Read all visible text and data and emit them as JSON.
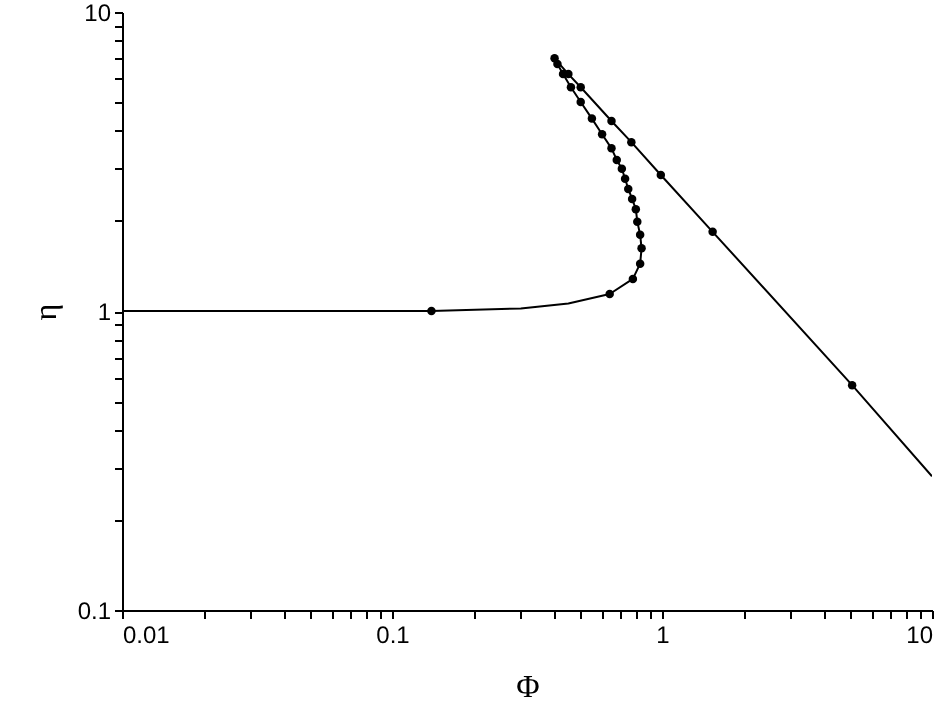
{
  "chart_data": {
    "type": "line",
    "xlabel": "Φ",
    "ylabel": "η",
    "log": "xy",
    "grid": false,
    "xlim": [
      0.01,
      10
    ],
    "ylim": [
      0.1,
      10
    ],
    "xticks": [
      0.01,
      {
        "value": 0.02,
        "label": null
      },
      {
        "value": 0.03,
        "label": null
      },
      {
        "value": 0.04,
        "label": null
      },
      {
        "value": 0.05,
        "label": null
      },
      {
        "value": 0.06,
        "label": null
      },
      {
        "value": 0.07,
        "label": null
      },
      {
        "value": 0.08,
        "label": null
      },
      {
        "value": 0.09,
        "label": null
      },
      0.1,
      {
        "value": 0.2,
        "label": null
      },
      {
        "value": 0.3,
        "label": null
      },
      {
        "value": 0.4,
        "label": null
      },
      {
        "value": 0.5,
        "label": null
      },
      {
        "value": 0.6,
        "label": null
      },
      {
        "value": 0.7,
        "label": null
      },
      {
        "value": 0.8,
        "label": null
      },
      {
        "value": 0.9,
        "label": null
      },
      1,
      {
        "value": 2,
        "label": null
      },
      {
        "value": 3,
        "label": null
      },
      {
        "value": 4,
        "label": null
      },
      {
        "value": 5,
        "label": null
      },
      {
        "value": 6,
        "label": null
      },
      {
        "value": 7,
        "label": null
      },
      {
        "value": 8,
        "label": null
      },
      {
        "value": 9,
        "label": null
      },
      10
    ],
    "yticks": [
      0.1,
      {
        "value": 0.2,
        "label": null
      },
      {
        "value": 0.3,
        "label": null
      },
      {
        "value": 0.4,
        "label": null
      },
      {
        "value": 0.5,
        "label": null
      },
      {
        "value": 0.6,
        "label": null
      },
      {
        "value": 0.7,
        "label": null
      },
      {
        "value": 0.8,
        "label": null
      },
      {
        "value": 0.9,
        "label": null
      },
      1,
      {
        "value": 2,
        "label": null
      },
      {
        "value": 3,
        "label": null
      },
      {
        "value": 4,
        "label": null
      },
      {
        "value": 5,
        "label": null
      },
      {
        "value": 6,
        "label": null
      },
      {
        "value": 7,
        "label": null
      },
      {
        "value": 8,
        "label": null
      },
      {
        "value": 9,
        "label": null
      },
      10
    ],
    "series": [
      {
        "marker": "none",
        "line_style": "solid",
        "color": "#000000",
        "x": [
          0.01,
          0.03,
          0.14,
          0.3,
          0.45,
          0.64,
          0.78,
          0.83,
          0.84,
          0.83,
          0.81,
          0.8,
          0.775,
          0.75,
          0.73,
          0.71,
          0.68,
          0.65,
          0.6,
          0.55,
          0.5,
          0.46,
          0.43,
          0.41,
          0.4,
          0.45,
          0.5,
          0.65,
          0.77,
          0.99,
          1.54,
          5.06,
          10
        ],
        "values": [
          1.0,
          1.0,
          1.0,
          1.02,
          1.06,
          1.14,
          1.28,
          1.44,
          1.62,
          1.8,
          1.99,
          2.19,
          2.37,
          2.56,
          2.77,
          2.99,
          3.2,
          3.5,
          3.9,
          4.4,
          5.0,
          5.6,
          6.2,
          6.7,
          7.0,
          6.2,
          5.6,
          4.32,
          3.67,
          2.85,
          1.84,
          0.565,
          0.28
        ]
      },
      {
        "type": "scatter",
        "marker": "circle",
        "color": "#000000",
        "x": [
          0.14,
          0.64,
          0.78,
          0.83,
          0.84,
          0.83,
          0.81,
          0.8,
          0.775,
          0.75,
          0.73,
          0.71,
          0.68,
          0.65,
          0.6,
          0.55,
          0.5,
          0.46,
          0.43,
          0.41,
          0.4,
          0.45,
          0.5,
          0.65,
          0.77,
          0.99,
          1.54,
          5.06
        ],
        "values": [
          1.0,
          1.14,
          1.28,
          1.44,
          1.62,
          1.8,
          1.99,
          2.19,
          2.37,
          2.56,
          2.77,
          2.99,
          3.2,
          3.5,
          3.9,
          4.4,
          5.0,
          5.6,
          6.2,
          6.7,
          7.0,
          6.2,
          5.6,
          4.32,
          3.67,
          2.85,
          1.84,
          0.565
        ]
      }
    ]
  }
}
